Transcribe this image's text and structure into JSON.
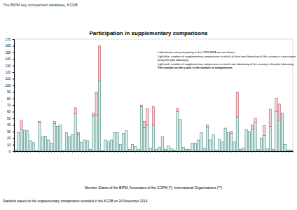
{
  "chart_data": {
    "type": "bar",
    "stacked": true,
    "grid": false,
    "subtitle": "The BIPM key comparison database, KCDB",
    "title": "Participation in supplementary comparisons",
    "x_label": "Member States of the BIPM, Associates of the CGPM (*), International Organizations (**)",
    "caption": "Statistics based on the supplementary comparisons recorded in the KCDB on 24 November 2014",
    "annotations": [
      "Laboratories not participating in the CIPM MRA are not shown.",
      "Light blue: number of supplementary comparisons in which at least one laboratory of the country is a participant, without",
      "being the pilot laboratory",
      "Light pink: number of supplementary comparisons in which one laboratory of the country is the pilot laboratory",
      "The number on the y-axis is the number of comparisons"
    ],
    "categories": [
      null,
      null,
      null,
      null,
      null,
      null,
      null,
      null,
      null,
      null,
      null,
      null,
      null,
      null,
      null,
      null,
      null,
      null,
      null,
      null,
      null,
      null,
      null,
      null,
      null,
      null,
      null,
      null,
      null,
      null,
      null,
      null,
      null,
      null,
      null,
      null,
      null,
      null,
      null,
      null,
      null,
      null,
      null,
      null,
      null,
      null,
      null,
      null,
      null,
      null,
      null,
      null,
      null,
      null,
      null,
      null,
      null,
      null,
      null,
      null,
      null,
      null,
      null,
      null,
      null,
      null,
      null,
      null,
      null,
      null,
      null,
      null,
      null,
      null,
      null,
      null,
      null,
      null,
      null,
      null,
      null,
      null,
      null,
      null,
      null,
      null,
      null,
      null,
      null,
      null,
      null,
      null,
      null
    ],
    "series": [
      {
        "color": "#d4ecea",
        "values": [
          2,
          28,
          33,
          32,
          31,
          16,
          13,
          1,
          43,
          22,
          23,
          17,
          12,
          42,
          38,
          40,
          1,
          28,
          22,
          25,
          57,
          25,
          13,
          17,
          16,
          3,
          54,
          55,
          108,
          1,
          17,
          15,
          17,
          28,
          28,
          10,
          27,
          31,
          3,
          10,
          7,
          3,
          68,
          36,
          40,
          5,
          40,
          3,
          6,
          22,
          3,
          8,
          4,
          2,
          60,
          48,
          6,
          3,
          3,
          12,
          12,
          17,
          28,
          5,
          37,
          17,
          25,
          2,
          18,
          14,
          35,
          28,
          27,
          14,
          52,
          3,
          5,
          33,
          30,
          33,
          43,
          3,
          20,
          24,
          4,
          38,
          3,
          60,
          47,
          58,
          10,
          2,
          2
        ]
      },
      {
        "color": "#f6cfd2",
        "values": [
          0,
          0,
          14,
          0,
          0,
          0,
          0,
          0,
          2,
          0,
          0,
          0,
          0,
          3,
          0,
          0,
          0,
          0,
          0,
          0,
          9,
          3,
          0,
          0,
          0,
          0,
          4,
          35,
          52,
          0,
          0,
          0,
          0,
          0,
          0,
          0,
          0,
          0,
          0,
          0,
          0,
          0,
          2,
          9,
          25,
          0,
          28,
          0,
          0,
          0,
          0,
          0,
          0,
          0,
          5,
          0,
          0,
          0,
          0,
          0,
          0,
          0,
          0,
          0,
          3,
          0,
          0,
          0,
          0,
          0,
          0,
          0,
          3,
          0,
          38,
          0,
          0,
          0,
          0,
          7,
          7,
          0,
          0,
          15,
          0,
          26,
          0,
          20,
          25,
          0,
          0,
          0,
          0
        ]
      }
    ],
    "ylim": [
      0,
      170
    ],
    "yticks": [
      0,
      10,
      20,
      30,
      40,
      50,
      60,
      70,
      80,
      90,
      100,
      110,
      120,
      130,
      140,
      150,
      160,
      170
    ]
  }
}
